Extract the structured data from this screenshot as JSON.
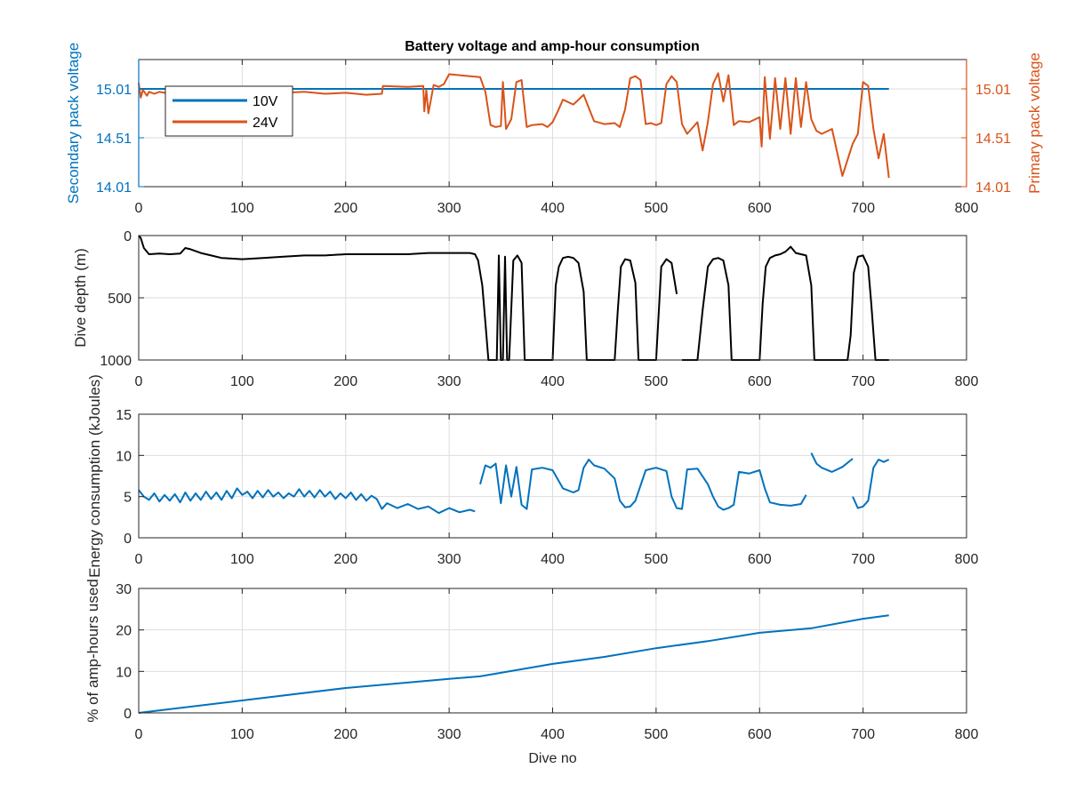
{
  "title": "Battery voltage and amp-hour consumption",
  "colors": {
    "blue": "#0072BD",
    "orange": "#D95319",
    "black": "#000000",
    "grid": "#dddddd",
    "axis": "#262626"
  },
  "chart_data": [
    {
      "id": "voltage",
      "type": "line",
      "title": "Battery voltage and amp-hour consumption",
      "xlabel": "",
      "ylabel_left": "Secondary pack voltage",
      "ylabel_right": "Primary pack voltage",
      "xlim": [
        0,
        800
      ],
      "ylim": [
        14.01,
        15.31
      ],
      "xticks": [
        "0",
        "100",
        "200",
        "300",
        "400",
        "500",
        "600",
        "700",
        "800"
      ],
      "yticks_left": [
        "14.01",
        "14.51",
        "15.01"
      ],
      "yticks_right": [
        "14.01",
        "14.51",
        "15.01"
      ],
      "grid": true,
      "legend": {
        "position": "top-left",
        "entries": [
          "10V",
          "24V"
        ]
      },
      "series": [
        {
          "name": "10V",
          "color": "#0072BD",
          "x": [
            0,
            725
          ],
          "y": [
            15.01,
            15.01
          ]
        },
        {
          "name": "24V",
          "color": "#D95319",
          "x": [
            0,
            2,
            4,
            6,
            8,
            10,
            15,
            20,
            25,
            30,
            40,
            60,
            80,
            100,
            120,
            140,
            160,
            180,
            200,
            220,
            235,
            236,
            260,
            275,
            276,
            278,
            280,
            285,
            290,
            295,
            300,
            310,
            320,
            330,
            335,
            340,
            345,
            350,
            352,
            355,
            360,
            365,
            370,
            375,
            380,
            390,
            395,
            400,
            405,
            410,
            420,
            430,
            440,
            450,
            460,
            465,
            470,
            475,
            480,
            485,
            490,
            495,
            500,
            505,
            510,
            515,
            520,
            525,
            530,
            535,
            540,
            545,
            550,
            555,
            560,
            565,
            570,
            575,
            580,
            590,
            600,
            602,
            605,
            610,
            615,
            620,
            625,
            630,
            635,
            640,
            645,
            650,
            655,
            660,
            670,
            680,
            690,
            695,
            700,
            705,
            710,
            715,
            720,
            725
          ],
          "y": [
            15.07,
            14.92,
            15.0,
            14.97,
            14.94,
            14.98,
            14.96,
            14.98,
            14.97,
            14.98,
            14.97,
            14.98,
            14.96,
            14.98,
            14.98,
            14.97,
            14.98,
            14.96,
            14.97,
            14.95,
            14.96,
            15.04,
            15.03,
            15.04,
            14.78,
            15.0,
            14.76,
            15.05,
            15.03,
            15.06,
            15.16,
            15.15,
            15.14,
            15.13,
            14.98,
            14.64,
            14.62,
            14.63,
            15.08,
            14.6,
            14.7,
            15.08,
            15.1,
            14.62,
            14.64,
            14.65,
            14.62,
            14.67,
            14.78,
            14.9,
            14.85,
            14.95,
            14.68,
            14.65,
            14.66,
            14.62,
            14.8,
            15.12,
            15.14,
            15.1,
            14.65,
            14.66,
            14.64,
            14.66,
            15.06,
            15.14,
            15.08,
            14.65,
            14.55,
            14.61,
            14.67,
            14.38,
            14.67,
            15.06,
            15.17,
            14.88,
            15.15,
            14.64,
            14.68,
            14.67,
            14.72,
            14.42,
            15.13,
            14.5,
            15.12,
            14.6,
            15.12,
            14.55,
            15.12,
            14.62,
            15.08,
            14.7,
            14.58,
            14.55,
            14.6,
            14.12,
            14.45,
            14.55,
            15.08,
            15.04,
            14.6,
            14.3,
            14.55,
            14.1
          ]
        }
      ]
    },
    {
      "id": "depth",
      "type": "line",
      "xlabel": "",
      "ylabel": "Dive depth (m)",
      "xlim": [
        0,
        800
      ],
      "ylim": [
        0,
        1000
      ],
      "y_reversed": true,
      "xticks": [
        "0",
        "100",
        "200",
        "300",
        "400",
        "500",
        "600",
        "700",
        "800"
      ],
      "yticks": [
        "0",
        "500",
        "1000"
      ],
      "grid": true,
      "series": [
        {
          "color": "#000000",
          "x": [
            0,
            2,
            5,
            10,
            20,
            30,
            40,
            45,
            50,
            60,
            70,
            80,
            100,
            120,
            140,
            160,
            180,
            200,
            220,
            240,
            260,
            280,
            300,
            320,
            325,
            328,
            332,
            335,
            338,
            342,
            346,
            348,
            350,
            352,
            354,
            356,
            358,
            362,
            366,
            370,
            373,
            376,
            380,
            395,
            400,
            403,
            406,
            410,
            415,
            420,
            425,
            430,
            433,
            436,
            440,
            455,
            460,
            463,
            466,
            470,
            475,
            480,
            483,
            486,
            490,
            500,
            505,
            510,
            515,
            520
          ],
          "y": [
            0,
            20,
            100,
            150,
            145,
            150,
            145,
            100,
            110,
            140,
            160,
            180,
            190,
            180,
            170,
            160,
            160,
            150,
            150,
            150,
            150,
            140,
            140,
            140,
            150,
            200,
            400,
            700,
            1000,
            1000,
            1000,
            160,
            1000,
            1000,
            170,
            1000,
            1000,
            200,
            160,
            220,
            1000,
            1000,
            1000,
            1000,
            1000,
            400,
            250,
            180,
            170,
            180,
            220,
            450,
            1000,
            1000,
            1000,
            1000,
            1000,
            600,
            250,
            190,
            200,
            380,
            1000,
            1000,
            1000,
            1000,
            250,
            190,
            220,
            470
          ]
        },
        {
          "color": "#000000",
          "x": [
            525,
            530,
            535,
            540,
            545,
            550,
            555,
            560,
            565,
            570,
            573,
            576,
            580,
            590,
            600,
            603,
            606,
            610,
            615,
            620,
            625,
            630,
            635,
            640,
            645,
            650,
            653,
            656,
            660,
            670,
            680,
            685,
            688,
            691,
            695,
            700,
            705,
            708,
            712,
            720,
            725
          ],
          "y": [
            1000,
            1000,
            1000,
            1000,
            600,
            250,
            190,
            180,
            200,
            400,
            1000,
            1000,
            1000,
            1000,
            1000,
            550,
            250,
            180,
            160,
            150,
            130,
            90,
            140,
            150,
            160,
            400,
            1000,
            1000,
            1000,
            1000,
            1000,
            1000,
            800,
            300,
            170,
            160,
            250,
            550,
            1000,
            1000,
            1000
          ]
        }
      ]
    },
    {
      "id": "energy",
      "type": "line",
      "xlabel": "",
      "ylabel": "Energy consumption (kJoules)",
      "xlim": [
        0,
        800
      ],
      "ylim": [
        0,
        15
      ],
      "xticks": [
        "0",
        "100",
        "200",
        "300",
        "400",
        "500",
        "600",
        "700",
        "800"
      ],
      "yticks": [
        "0",
        "5",
        "10",
        "15"
      ],
      "grid": true,
      "series": [
        {
          "color": "#0072BD",
          "x": [
            0,
            5,
            10,
            15,
            20,
            25,
            30,
            35,
            40,
            45,
            50,
            55,
            60,
            65,
            70,
            75,
            80,
            85,
            90,
            95,
            100,
            105,
            110,
            115,
            120,
            125,
            130,
            135,
            140,
            145,
            150,
            155,
            160,
            165,
            170,
            175,
            180,
            185,
            190,
            195,
            200,
            205,
            210,
            215,
            220,
            225,
            230,
            235,
            240,
            250,
            260,
            270,
            280,
            290,
            300,
            310,
            320,
            325
          ],
          "y": [
            5.8,
            5.0,
            4.6,
            5.4,
            4.4,
            5.2,
            4.5,
            5.3,
            4.3,
            5.5,
            4.5,
            5.4,
            4.6,
            5.6,
            4.7,
            5.5,
            4.6,
            5.7,
            4.8,
            6.0,
            5.2,
            5.6,
            4.8,
            5.7,
            4.9,
            5.8,
            5.0,
            5.5,
            4.8,
            5.4,
            5.0,
            5.9,
            5.0,
            5.7,
            4.9,
            5.8,
            5.0,
            5.6,
            4.7,
            5.4,
            4.8,
            5.5,
            4.6,
            5.3,
            4.5,
            5.1,
            4.7,
            3.5,
            4.2,
            3.6,
            4.1,
            3.5,
            3.8,
            3.0,
            3.6,
            3.1,
            3.4,
            3.2
          ]
        },
        {
          "color": "#0072BD",
          "x": [
            330,
            335,
            340,
            345,
            350,
            355,
            360,
            365,
            370,
            375,
            380,
            390,
            400,
            410,
            420,
            425,
            430,
            435,
            440,
            450,
            460,
            465,
            470,
            475,
            480,
            490,
            500,
            510,
            515,
            520,
            525,
            530,
            540,
            550,
            555,
            560,
            565,
            570,
            575,
            580,
            590,
            600,
            605,
            610,
            620,
            630,
            640,
            645
          ],
          "y": [
            6.5,
            8.8,
            8.5,
            9.0,
            4.2,
            8.8,
            5.0,
            8.6,
            4.0,
            3.5,
            8.3,
            8.5,
            8.2,
            6.0,
            5.5,
            5.8,
            8.5,
            9.5,
            8.8,
            8.4,
            7.2,
            4.5,
            3.7,
            3.8,
            4.5,
            8.2,
            8.5,
            8.1,
            5.0,
            3.6,
            3.5,
            8.3,
            8.4,
            6.5,
            5.0,
            3.8,
            3.4,
            3.6,
            4.0,
            8.0,
            7.8,
            8.2,
            6.0,
            4.3,
            4.0,
            3.9,
            4.1,
            5.2
          ]
        },
        {
          "color": "#0072BD",
          "x": [
            650,
            655,
            660,
            670,
            680,
            690
          ],
          "y": [
            10.3,
            9.0,
            8.5,
            8.0,
            8.6,
            9.6
          ]
        },
        {
          "color": "#0072BD",
          "x": [
            690,
            695,
            700,
            705,
            710,
            715,
            720,
            725
          ],
          "y": [
            5.0,
            3.6,
            3.8,
            4.5,
            8.5,
            9.5,
            9.2,
            9.5
          ]
        }
      ]
    },
    {
      "id": "amphours",
      "type": "line",
      "xlabel": "Dive no",
      "ylabel": "% of amp-hours used",
      "xlim": [
        0,
        800
      ],
      "ylim": [
        0,
        30
      ],
      "xticks": [
        "0",
        "100",
        "200",
        "300",
        "400",
        "500",
        "600",
        "700",
        "800"
      ],
      "yticks": [
        "0",
        "10",
        "20",
        "30"
      ],
      "grid": true,
      "series": [
        {
          "color": "#0072BD",
          "x": [
            0,
            100,
            200,
            300,
            330,
            400,
            450,
            500,
            550,
            600,
            650,
            700,
            725
          ],
          "y": [
            0,
            3.0,
            6.0,
            8.2,
            8.8,
            11.8,
            13.5,
            15.6,
            17.3,
            19.3,
            20.4,
            22.7,
            23.5
          ]
        }
      ]
    }
  ]
}
